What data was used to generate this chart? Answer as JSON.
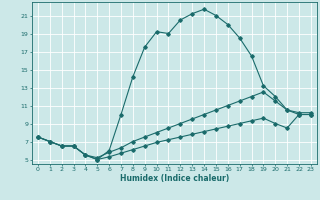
{
  "xlabel": "Humidex (Indice chaleur)",
  "bg_color": "#cce8e8",
  "grid_color": "#ffffff",
  "line_color": "#1a6b6b",
  "xlim": [
    -0.5,
    23.5
  ],
  "ylim": [
    4.5,
    22.5
  ],
  "xticks": [
    0,
    1,
    2,
    3,
    4,
    5,
    6,
    7,
    8,
    9,
    10,
    11,
    12,
    13,
    14,
    15,
    16,
    17,
    18,
    19,
    20,
    21,
    22,
    23
  ],
  "yticks": [
    5,
    7,
    9,
    11,
    13,
    15,
    17,
    19,
    21
  ],
  "series": [
    {
      "x": [
        0,
        1,
        2,
        3,
        4,
        5,
        6,
        7,
        8,
        9,
        10,
        11,
        12,
        13,
        14,
        15,
        16,
        17,
        18,
        19,
        20,
        21,
        22,
        23
      ],
      "y": [
        7.5,
        7.0,
        6.5,
        6.5,
        5.5,
        5.0,
        5.3,
        5.7,
        6.1,
        6.5,
        6.9,
        7.2,
        7.5,
        7.8,
        8.1,
        8.4,
        8.7,
        9.0,
        9.3,
        9.6,
        9.0,
        8.5,
        10.0,
        10.0
      ]
    },
    {
      "x": [
        0,
        1,
        2,
        3,
        4,
        5,
        6,
        7,
        8,
        9,
        10,
        11,
        12,
        13,
        14,
        15,
        16,
        17,
        18,
        19,
        20,
        21,
        22,
        23
      ],
      "y": [
        7.5,
        7.0,
        6.5,
        6.5,
        5.5,
        5.2,
        5.8,
        6.3,
        7.0,
        7.5,
        8.0,
        8.5,
        9.0,
        9.5,
        10.0,
        10.5,
        11.0,
        11.5,
        12.0,
        12.5,
        11.5,
        10.5,
        10.2,
        10.2
      ]
    },
    {
      "x": [
        0,
        1,
        2,
        3,
        4,
        5,
        6,
        7,
        8,
        9,
        10,
        11,
        12,
        13,
        14,
        15,
        16,
        17,
        18,
        19,
        20,
        21,
        22,
        23
      ],
      "y": [
        7.5,
        7.0,
        6.5,
        6.5,
        5.5,
        5.0,
        6.0,
        10.0,
        14.2,
        17.5,
        19.2,
        19.0,
        20.5,
        21.2,
        21.7,
        21.0,
        20.0,
        18.5,
        16.5,
        13.2,
        12.0,
        10.5,
        10.0,
        10.0
      ]
    }
  ]
}
